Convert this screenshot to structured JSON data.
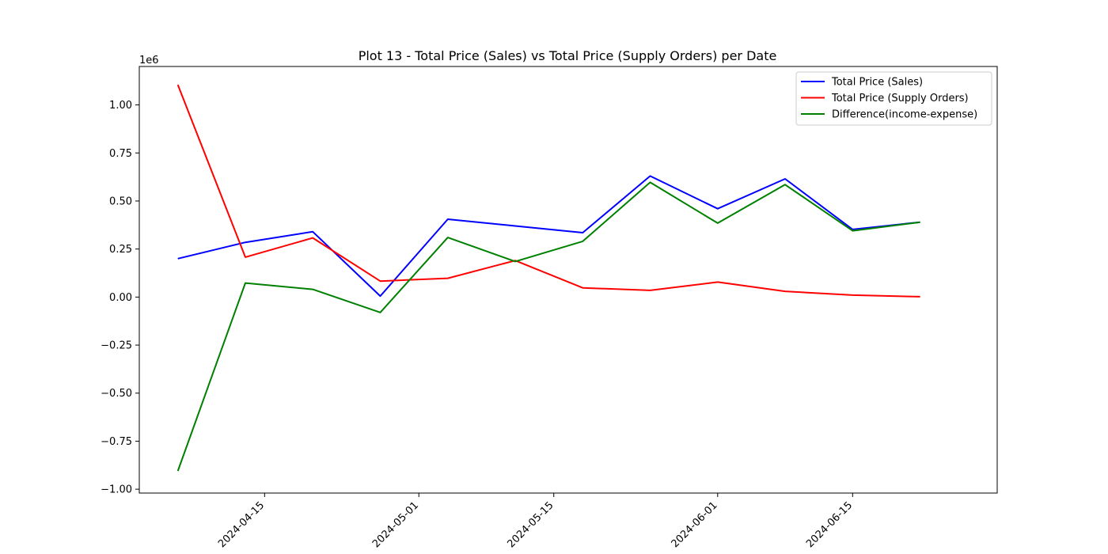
{
  "chart_data": {
    "type": "line",
    "title": "Plot 13 - Total Price (Sales) vs Total Price (Supply Orders) per Date",
    "xlabel": "",
    "ylabel": "",
    "y_offset_label": "1e6",
    "ylim": [
      -1020000,
      1200000
    ],
    "xlim": [
      "2024-04-02",
      "2024-06-30"
    ],
    "x_tick_labels": [
      "2024-04-15",
      "2024-05-01",
      "2024-05-15",
      "2024-06-01",
      "2024-06-15"
    ],
    "y_tick_values": [
      -1.0,
      -0.75,
      -0.5,
      -0.25,
      0.0,
      0.25,
      0.5,
      0.75,
      1.0
    ],
    "y_tick_labels": [
      "−1.00",
      "−0.75",
      "−0.50",
      "−0.25",
      "0.00",
      "0.25",
      "0.50",
      "0.75",
      "1.00"
    ],
    "x": [
      "2024-04-06",
      "2024-04-13",
      "2024-04-20",
      "2024-04-27",
      "2024-05-04",
      "2024-05-11",
      "2024-05-18",
      "2024-05-25",
      "2024-06-01",
      "2024-06-08",
      "2024-06-15",
      "2024-06-22"
    ],
    "series": [
      {
        "name": "Total Price (Sales)",
        "color": "#0000ff",
        "values": [
          200000,
          285000,
          340000,
          5000,
          405000,
          370000,
          335000,
          630000,
          460000,
          615000,
          352000,
          390000
        ]
      },
      {
        "name": "Total Price (Supply Orders)",
        "color": "#ff0000",
        "values": [
          1105000,
          208000,
          308000,
          83000,
          98000,
          190000,
          48000,
          35000,
          78000,
          30000,
          10000,
          2000
        ]
      },
      {
        "name": "Difference(income-expense)",
        "color": "#008000",
        "values": [
          -905000,
          73000,
          40000,
          -80000,
          310000,
          185000,
          290000,
          597000,
          385000,
          585000,
          345000,
          390000
        ]
      }
    ],
    "grid": false,
    "legend_position": "upper right"
  }
}
